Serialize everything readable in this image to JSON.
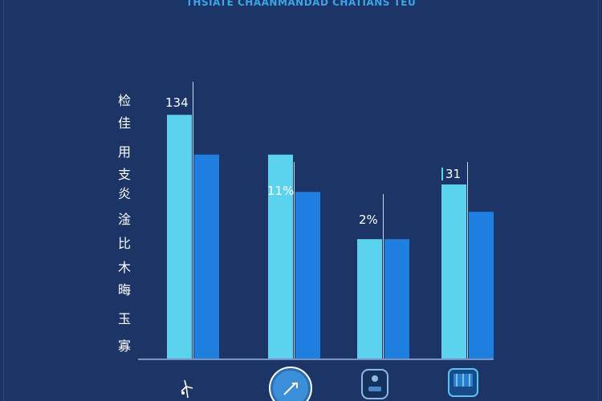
{
  "chart_data": {
    "type": "bar",
    "title": "THSIATE CHAANMANDAD CHATIANS TEU",
    "ylabel_chars": [
      "检",
      "佳",
      "",
      "⽤",
      "⽀",
      "炎",
      "",
      "淦",
      "",
      "⽐",
      "",
      "⽊",
      "",
      "晦",
      "",
      "",
      "",
      "⽟",
      "",
      "寡"
    ],
    "ylabel": "检佳⽤⽀炎淦⽐⽊晦⽟寡",
    "categories": [
      "",
      "",
      "",
      ""
    ],
    "series": [
      {
        "values": [
          98,
          82,
          48,
          70
        ],
        "color": "#5cd3ee"
      },
      {
        "values": [
          82,
          67,
          48,
          59
        ],
        "color": "#1e7fe0"
      }
    ],
    "data_labels": [
      "134",
      "11%",
      "2%",
      "31"
    ],
    "ylim": [
      0,
      100
    ],
    "grid": false
  },
  "icons": [
    "figure-icon",
    "circle-badge-icon",
    "device-icon",
    "tv-icon"
  ]
}
